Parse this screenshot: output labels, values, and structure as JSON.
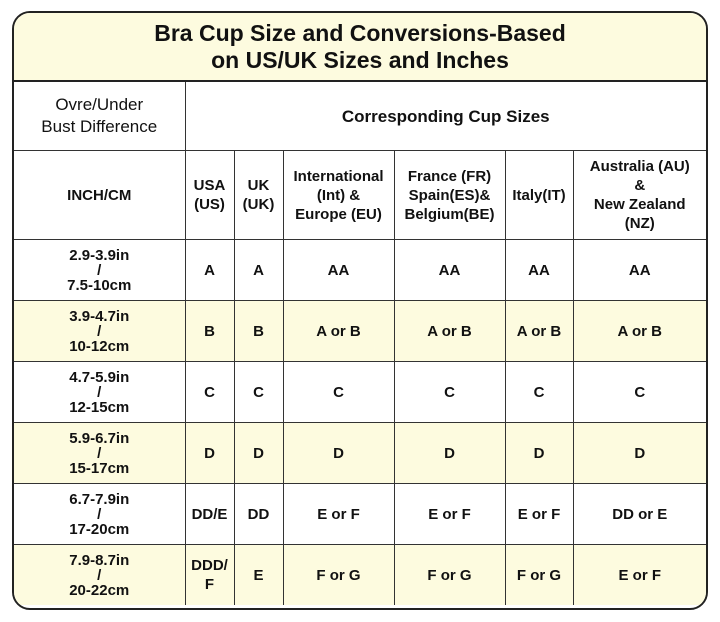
{
  "title": "Bra Cup Size and Conversions-Based\non US/UK Sizes and Inches",
  "header": {
    "left": "Ovre/Under\nBust Difference",
    "right": "Corresponding Cup Sizes"
  },
  "columns": [
    "INCH/CM",
    "USA\n(US)",
    "UK\n(UK)",
    "International\n(Int) &\nEurope (EU)",
    "France (FR)\nSpain(ES)&\nBelgium(BE)",
    "Italy(IT)",
    "Australia (AU)\n&\nNew Zealand\n(NZ)"
  ],
  "rows": [
    [
      "2.9-3.9in\n/\n7.5-10cm",
      "A",
      "A",
      "AA",
      "AA",
      "AA",
      "AA"
    ],
    [
      "3.9-4.7in\n/\n10-12cm",
      "B",
      "B",
      "A or B",
      "A or B",
      "A or B",
      "A or B"
    ],
    [
      "4.7-5.9in\n/\n12-15cm",
      "C",
      "C",
      "C",
      "C",
      "C",
      "C"
    ],
    [
      "5.9-6.7in\n/\n15-17cm",
      "D",
      "D",
      "D",
      "D",
      "D",
      "D"
    ],
    [
      "6.7-7.9in\n/\n17-20cm",
      "DD/E",
      "DD",
      "E or F",
      "E or F",
      "E or F",
      "DD or E"
    ],
    [
      "7.9-8.7in\n/\n20-22cm",
      "DDD/\nF",
      "E",
      "F or G",
      "F or G",
      "F or G",
      "E or F"
    ]
  ],
  "colors": {
    "highlight": "#fdfbdf",
    "border": "#222222"
  }
}
